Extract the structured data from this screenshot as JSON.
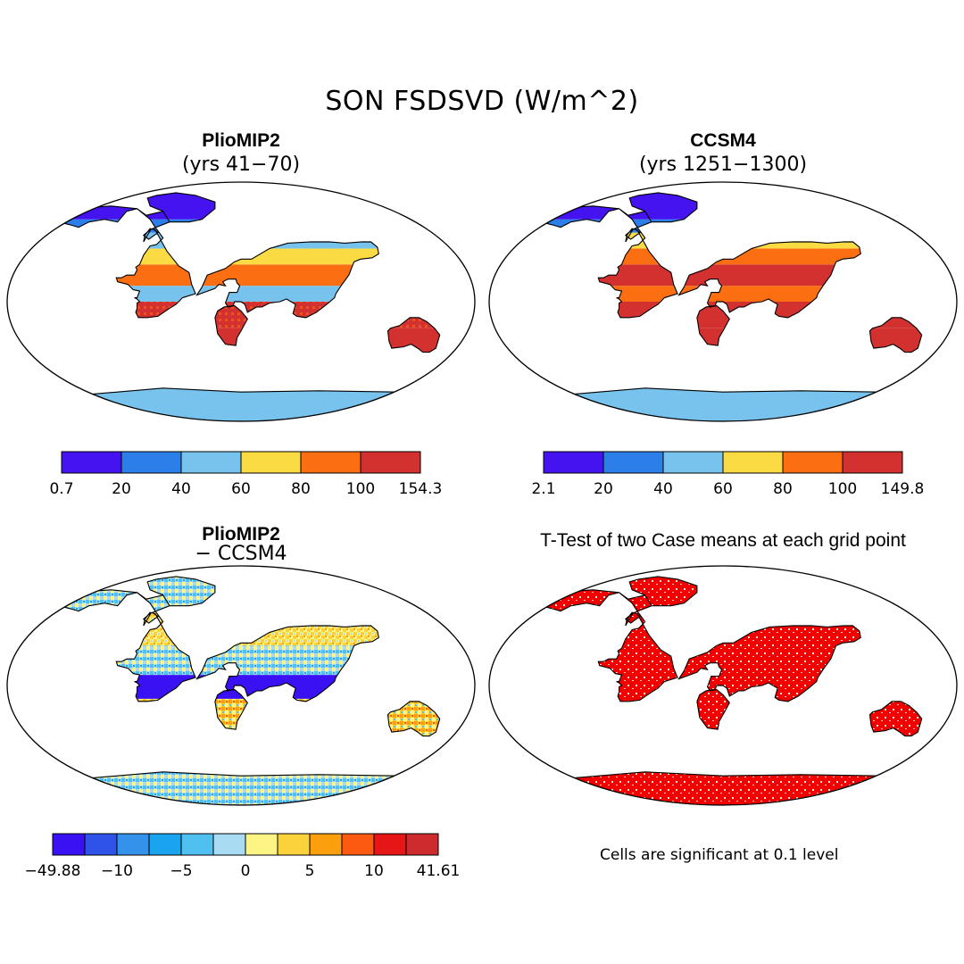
{
  "title": "SON FSDSVD (W/m^2)",
  "panels": {
    "top_left": {
      "title": "PlioMIP2",
      "subtitle": "(yrs 41−70)"
    },
    "top_right": {
      "title": "CCSM4",
      "subtitle": "(yrs 1251−1300)"
    },
    "bottom_left": {
      "title": "PlioMIP2",
      "subtitle": "− CCSM4"
    },
    "bottom_right": {
      "title": "T-Test of two Case means at each grid point",
      "note": "Cells are significant at 0.1 level"
    }
  },
  "colorbars": {
    "top_left": {
      "labels": [
        "0.7",
        "20",
        "40",
        "60",
        "80",
        "100",
        "154.3"
      ],
      "colors": [
        "#4413f0",
        "#2c7ee8",
        "#78c3ee",
        "#fbdb44",
        "#fc6e12",
        "#d23130"
      ]
    },
    "top_right": {
      "labels": [
        "2.1",
        "20",
        "40",
        "60",
        "80",
        "100",
        "149.8"
      ],
      "colors": [
        "#4413f0",
        "#2c7ee8",
        "#78c3ee",
        "#fbdb44",
        "#fc6e12",
        "#d23130"
      ]
    },
    "bottom_left": {
      "labels": [
        "−49.88",
        "−10",
        "−5",
        "0",
        "5",
        "10",
        "41.61"
      ],
      "colors": [
        "#3a11f2",
        "#2f52e8",
        "#3592ea",
        "#1aa4ef",
        "#4fc0f0",
        "#a9dbf3",
        "#fdf486",
        "#fbd23c",
        "#fb9f0e",
        "#fb5a10",
        "#e61617",
        "#cd2b2d"
      ]
    }
  },
  "ttest_color": "#f20000"
}
